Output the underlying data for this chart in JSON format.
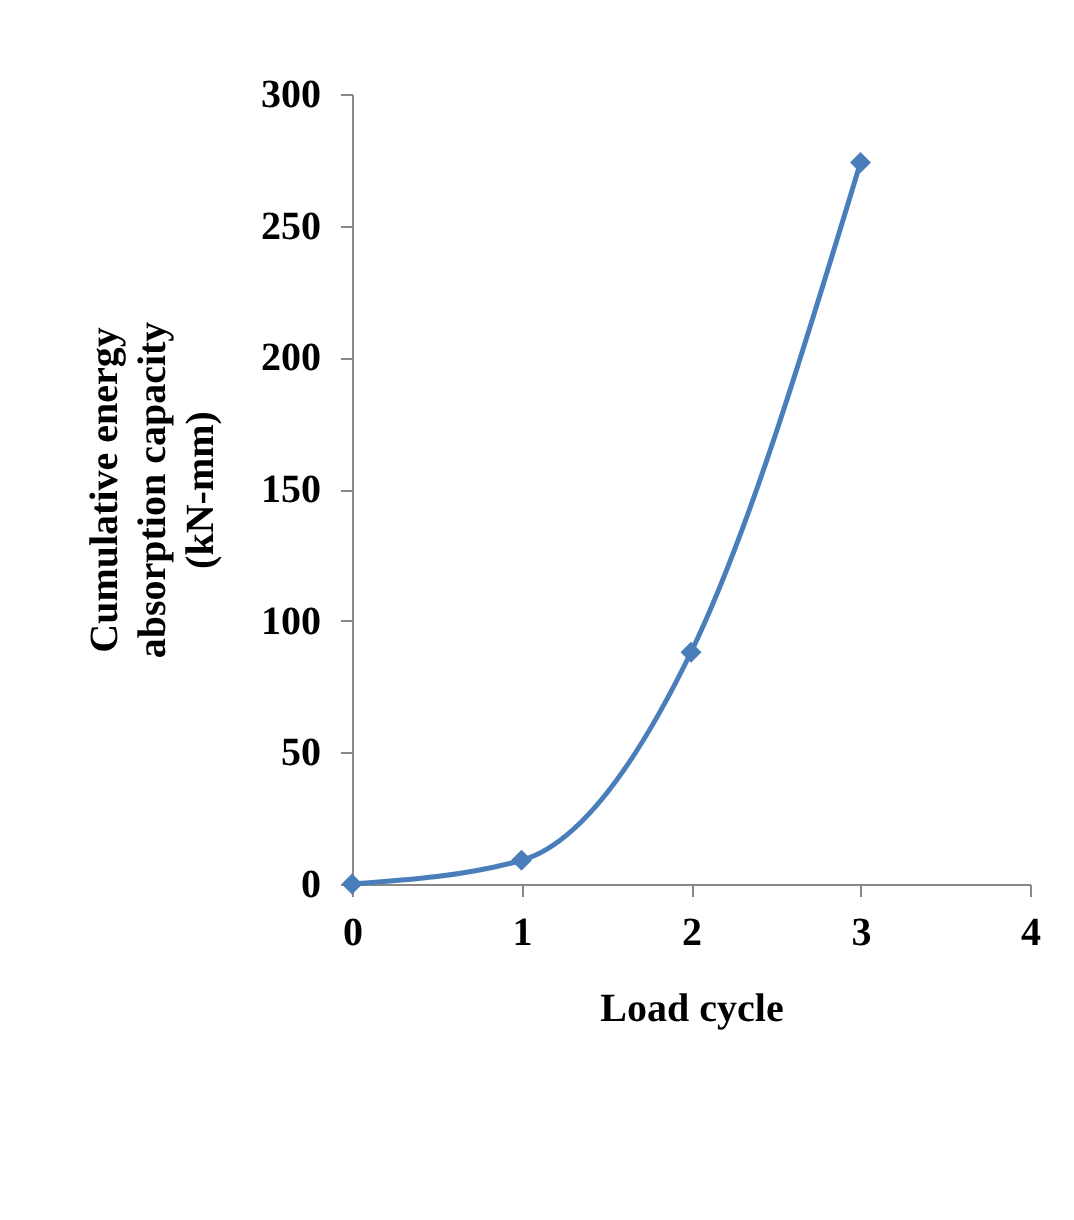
{
  "chart_data": {
    "type": "line",
    "xlabel": "Load cycle",
    "ylabel": "Cumulative energy absorption capacity (kN-mm)",
    "x": [
      0,
      1,
      2,
      3
    ],
    "series": [
      {
        "color": "#4a7ebb",
        "values": [
          0,
          9,
          88,
          274
        ]
      }
    ],
    "xlim": [
      0,
      4
    ],
    "xticks": [
      0,
      1,
      2,
      3,
      4
    ],
    "ylim": [
      0,
      300
    ],
    "yticks": [
      0,
      50,
      100,
      150,
      200,
      250,
      300
    ],
    "grid": false,
    "legend": false,
    "marker": "diamond",
    "line_style": "solid"
  }
}
